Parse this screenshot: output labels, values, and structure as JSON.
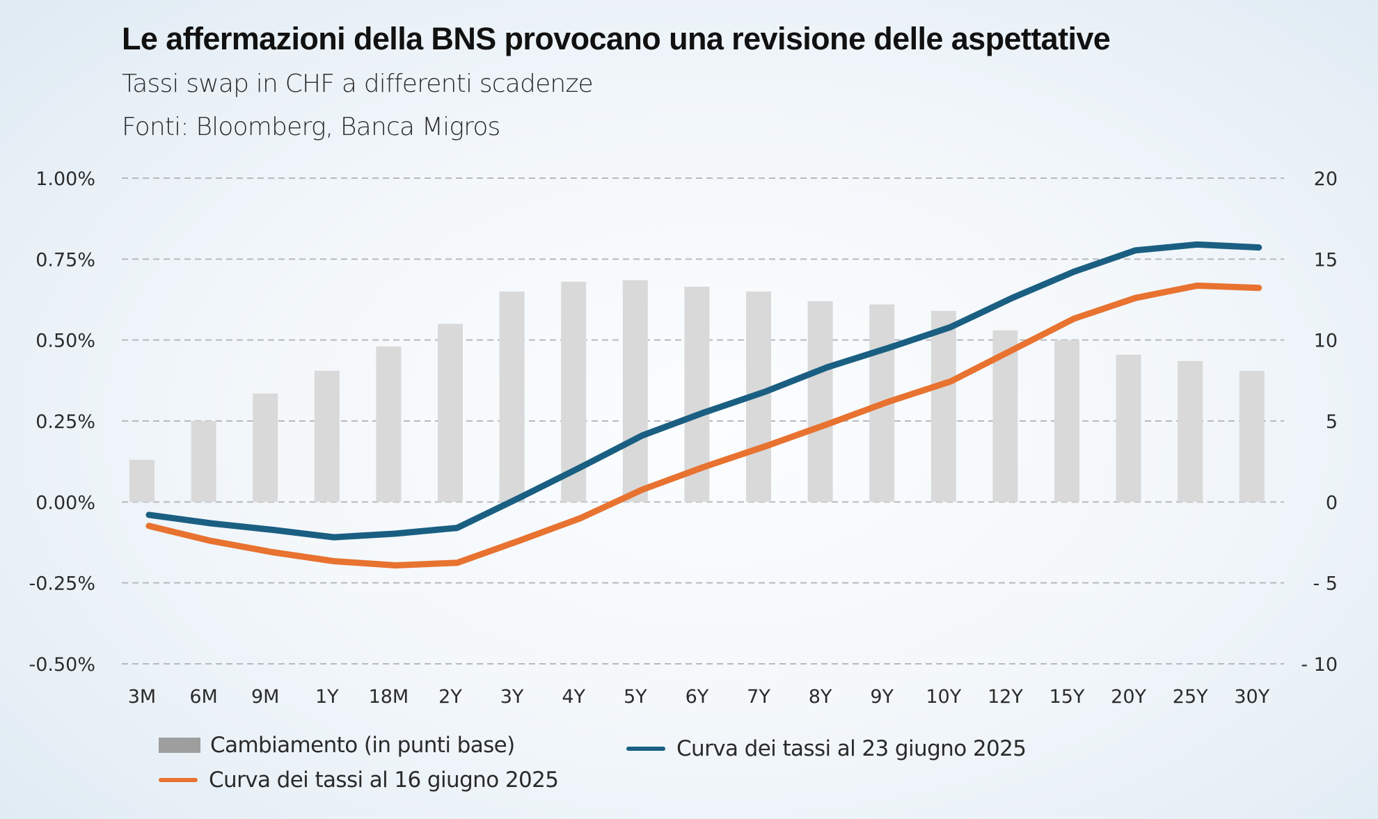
{
  "header": {
    "title": "Le affermazioni della BNS provocano una revisione delle aspettative",
    "subtitle": "Tassi swap in CHF a differenti scadenze",
    "source": "Fonti: Bloomberg, Banca Migros"
  },
  "colors": {
    "bars": "#d9d9d9",
    "legend_bar": "#9e9e9e",
    "series_16_june": "#e8722f",
    "series_23_june": "#1a5f82",
    "gridline": "#b7b9bc"
  },
  "chart_data": {
    "type": "bar+line",
    "title": "Le affermazioni della BNS provocano una revisione delle aspettative",
    "subtitle": "Tassi swap in CHF a differenti scadenze",
    "xlabel": "",
    "ylabel_left": "",
    "ylabel_right": "",
    "categories": [
      "3M",
      "6M",
      "9M",
      "1Y",
      "18M",
      "2Y",
      "3Y",
      "4Y",
      "5Y",
      "6Y",
      "7Y",
      "8Y",
      "9Y",
      "10Y",
      "12Y",
      "15Y",
      "20Y",
      "25Y",
      "30Y"
    ],
    "left_axis": {
      "ylim": [
        -0.5,
        1.0
      ],
      "ticks": [
        1.0,
        0.75,
        0.5,
        0.25,
        0.0,
        -0.25,
        -0.5
      ],
      "tick_labels": [
        "1.00%",
        "0.75%",
        "0.50%",
        "0.25%",
        "0.00%",
        "-0.25%",
        "-0.50%"
      ]
    },
    "right_axis": {
      "ylim": [
        -10,
        20
      ],
      "ticks": [
        20,
        15,
        10,
        5,
        0,
        -5,
        -10
      ],
      "tick_labels": [
        "20",
        "15",
        "10",
        "5",
        "0",
        "- 5",
        "- 10"
      ]
    },
    "grid": true,
    "legend_position": "bottom",
    "series": [
      {
        "name": "Cambiamento (in punti base)",
        "type": "bar",
        "axis": "right",
        "values": [
          2.6,
          5.0,
          6.7,
          8.1,
          9.6,
          11.0,
          13.0,
          13.6,
          13.7,
          13.3,
          13.0,
          12.4,
          12.2,
          11.8,
          10.6,
          10.0,
          9.1,
          8.7,
          8.1
        ]
      },
      {
        "name": "Curva dei tassi al 16 giugno 2025",
        "type": "line",
        "axis": "left",
        "values": [
          -0.074,
          -0.12,
          -0.155,
          -0.183,
          -0.196,
          -0.188,
          -0.12,
          -0.05,
          0.038,
          0.108,
          0.172,
          0.24,
          0.31,
          0.372,
          0.469,
          0.566,
          0.63,
          0.668,
          0.661
        ]
      },
      {
        "name": "Curva dei tassi al 23 giugno 2025",
        "type": "line",
        "axis": "left",
        "values": [
          -0.04,
          -0.066,
          -0.086,
          -0.109,
          -0.098,
          -0.08,
          0.012,
          0.107,
          0.205,
          0.276,
          0.341,
          0.416,
          0.476,
          0.54,
          0.63,
          0.711,
          0.777,
          0.795,
          0.786
        ]
      }
    ]
  },
  "legend": {
    "bars_label": "Cambiamento (in punti base)",
    "line_16_label": "Curva dei tassi al 16 giugno 2025",
    "line_23_label": "Curva dei tassi al 23 giugno 2025"
  }
}
